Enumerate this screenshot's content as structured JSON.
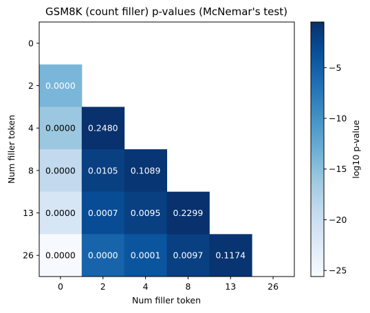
{
  "chart_data": {
    "type": "heatmap",
    "title": "GSM8K (count filler) p-values (McNemar's test)",
    "xlabel": "Num filler token",
    "ylabel": "Num filler token",
    "x_categories": [
      "0",
      "2",
      "4",
      "8",
      "13",
      "26"
    ],
    "y_categories": [
      "0",
      "2",
      "4",
      "8",
      "13",
      "26"
    ],
    "cells": [
      {
        "row": "2",
        "col": "0",
        "label": "0.0000",
        "log10": -14.0
      },
      {
        "row": "4",
        "col": "0",
        "label": "0.0000",
        "log10": -16.0
      },
      {
        "row": "4",
        "col": "2",
        "label": "0.2480",
        "log10": -0.6
      },
      {
        "row": "8",
        "col": "0",
        "label": "0.0000",
        "log10": -19.0
      },
      {
        "row": "8",
        "col": "2",
        "label": "0.0105",
        "log10": -2.0
      },
      {
        "row": "8",
        "col": "4",
        "label": "0.1089",
        "log10": -1.0
      },
      {
        "row": "13",
        "col": "0",
        "label": "0.0000",
        "log10": -21.5
      },
      {
        "row": "13",
        "col": "2",
        "label": "0.0007",
        "log10": -3.2
      },
      {
        "row": "13",
        "col": "4",
        "label": "0.0095",
        "log10": -2.0
      },
      {
        "row": "13",
        "col": "8",
        "label": "0.2299",
        "log10": -0.6
      },
      {
        "row": "26",
        "col": "0",
        "label": "0.0000",
        "log10": -25.5
      },
      {
        "row": "26",
        "col": "2",
        "label": "0.0000",
        "log10": -5.5
      },
      {
        "row": "26",
        "col": "4",
        "label": "0.0001",
        "log10": -4.0
      },
      {
        "row": "26",
        "col": "8",
        "label": "0.0097",
        "log10": -2.0
      },
      {
        "row": "26",
        "col": "13",
        "label": "0.1174",
        "log10": -0.9
      }
    ],
    "colorbar": {
      "label": "log10 p-value",
      "min": -25.6,
      "max": -0.5,
      "ticks": [
        -5,
        -10,
        -15,
        -20,
        -25
      ],
      "tick_labels": [
        "−5",
        "−10",
        "−15",
        "−20",
        "−25"
      ],
      "colormap": "Blues_r"
    },
    "grid": false
  }
}
